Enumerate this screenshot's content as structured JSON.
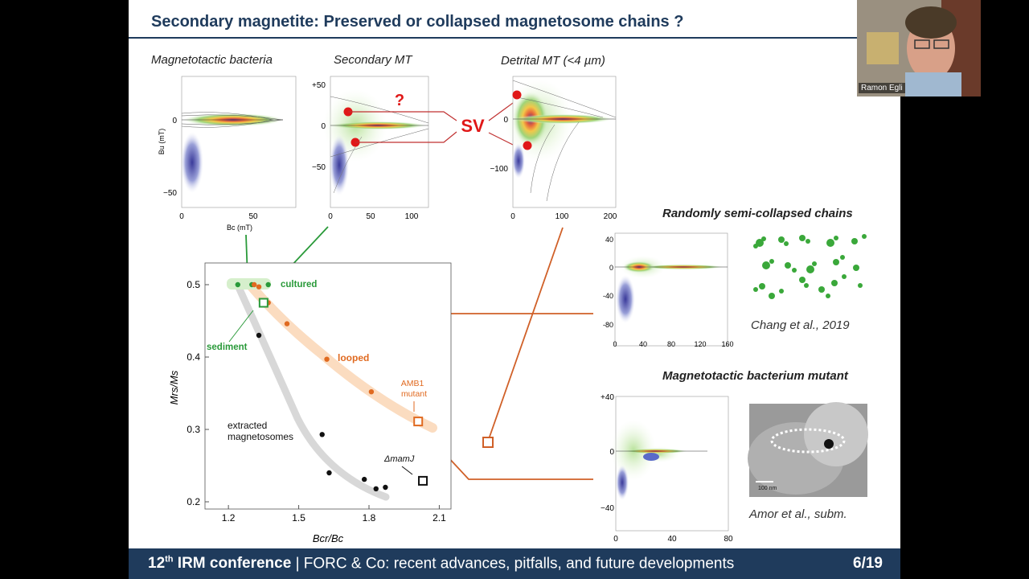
{
  "slide": {
    "title": "Secondary magnetite: Preserved or collapsed magnetosome chains ?",
    "panel_titles": {
      "mtb": "Magnetotactic bacteria",
      "secondary": "Secondary MT",
      "detrital": "Detrital MT (<4 µm)",
      "random": "Randomly semi-collapsed chains",
      "mutant": "Magnetotactic bacterium mutant"
    },
    "sv_label": "SV",
    "question_mark": "?",
    "citations": {
      "chang": "Chang et al., 2019",
      "amor": "Amor et al., subm."
    },
    "forc_mtb": {
      "y_ticks": [
        "0",
        "−50"
      ],
      "x_ticks": [
        "0",
        "50"
      ],
      "ylabel": "Bu (mT)",
      "xlabel": "Bc (mT)"
    },
    "forc_secondary": {
      "y_ticks": [
        "+50",
        "0",
        "−50"
      ],
      "x_ticks": [
        "0",
        "50",
        "100"
      ]
    },
    "forc_detrital": {
      "y_ticks": [
        "0",
        "−100"
      ],
      "x_ticks": [
        "0",
        "100",
        "200"
      ]
    },
    "forc_random": {
      "y_ticks": [
        "40",
        "0",
        "-40",
        "-80"
      ],
      "x_ticks": [
        "0",
        "40",
        "80",
        "120",
        "160"
      ]
    },
    "forc_mutant": {
      "y_ticks": [
        "+40",
        "0",
        "−40"
      ],
      "x_ticks": [
        "0",
        "40",
        "80"
      ]
    },
    "tem_scale": "100 nm"
  },
  "chart_data": {
    "type": "scatter",
    "xlabel": "Bcr/Bc",
    "ylabel": "Mrs/Ms",
    "xlim": [
      1.1,
      2.15
    ],
    "ylim": [
      0.19,
      0.53
    ],
    "x_ticks": [
      "1.2",
      "1.5",
      "1.8",
      "2.1"
    ],
    "y_ticks": [
      "0.5",
      "0.4",
      "0.3",
      "0.2"
    ],
    "series": [
      {
        "name": "cultured",
        "color": "#2a9a3a",
        "points": [
          [
            1.24,
            0.5
          ],
          [
            1.3,
            0.5
          ],
          [
            1.37,
            0.5
          ]
        ]
      },
      {
        "name": "looped",
        "color": "#e06a20",
        "points": [
          [
            1.31,
            0.5
          ],
          [
            1.33,
            0.497
          ],
          [
            1.37,
            0.475
          ],
          [
            1.45,
            0.446
          ],
          [
            1.62,
            0.397
          ],
          [
            1.81,
            0.352
          ]
        ]
      },
      {
        "name": "extracted magnetosomes",
        "color": "#111111",
        "points": [
          [
            1.33,
            0.43
          ],
          [
            1.6,
            0.293
          ],
          [
            1.63,
            0.24
          ],
          [
            1.78,
            0.231
          ],
          [
            1.83,
            0.218
          ],
          [
            1.87,
            0.22
          ]
        ]
      },
      {
        "name": "sediment",
        "color": "#2a9a3a",
        "points": [
          [
            1.35,
            0.475
          ]
        ]
      },
      {
        "name": "AMB1 mutant",
        "color": "#e06a20",
        "points": [
          [
            2.01,
            0.311
          ]
        ]
      },
      {
        "name": "ΔmamJ",
        "color": "#111111",
        "points": [
          [
            2.03,
            0.229
          ]
        ]
      }
    ],
    "labels": {
      "cultured": "cultured",
      "sediment": "sediment",
      "looped": "looped",
      "amb1_1": "AMB1",
      "amb1_2": "mutant",
      "extracted_1": "extracted",
      "extracted_2": "magnetosomes",
      "mamj": "ΔmamJ"
    }
  },
  "footer": {
    "conf_num": "12",
    "conf_sup": "th",
    "conf_rest": " IRM conference",
    "separator": " | ",
    "subtitle": "FORC & Co: recent advances, pitfalls, and future developments",
    "page": "6/19"
  },
  "video": {
    "participant_name": "Ramon Egli"
  }
}
